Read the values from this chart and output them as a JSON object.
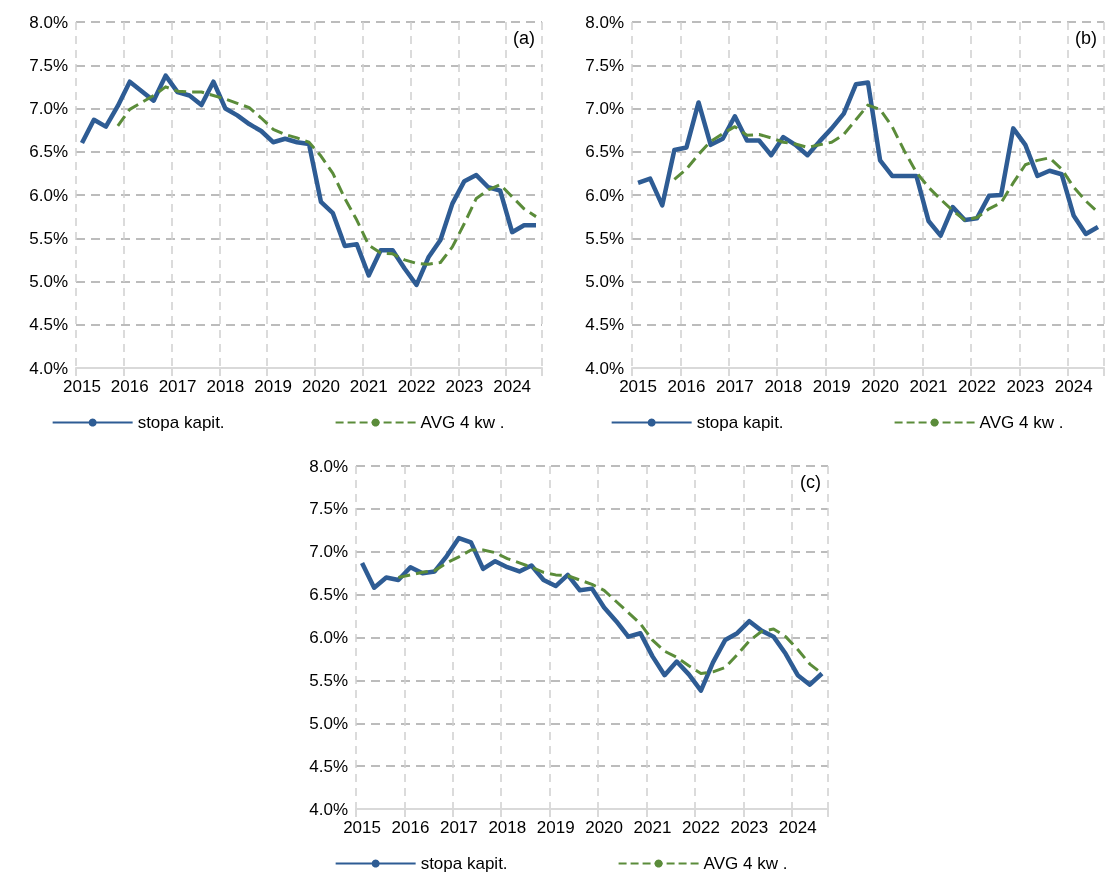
{
  "chart_data": [
    {
      "type": "line",
      "title": "(a)",
      "categories": [
        "2015",
        null,
        null,
        null,
        "2016",
        null,
        null,
        null,
        "2017",
        null,
        null,
        null,
        "2018",
        null,
        null,
        null,
        "2019",
        null,
        null,
        null,
        "2020",
        null,
        null,
        null,
        "2021",
        null,
        null,
        null,
        "2022",
        null,
        null,
        null,
        "2023",
        null,
        null,
        null,
        "2024",
        null,
        null
      ],
      "series": [
        {
          "name": "stopa kapit.",
          "color": "#2e5c94",
          "line_style": "solid",
          "values": [
            6.6,
            6.87,
            6.79,
            7.03,
            7.31,
            7.2,
            7.09,
            7.38,
            7.19,
            7.15,
            7.04,
            7.31,
            7.0,
            6.92,
            6.82,
            6.74,
            6.61,
            6.65,
            6.61,
            6.59,
            5.92,
            5.79,
            5.41,
            5.43,
            5.07,
            5.36,
            5.36,
            5.15,
            4.96,
            5.28,
            5.48,
            5.9,
            6.16,
            6.23,
            6.09,
            6.05,
            5.57,
            5.65,
            5.65
          ]
        },
        {
          "name": "AVG 4 kw .",
          "color": "#5b8c3a",
          "line_style": "dashed",
          "values": [
            null,
            null,
            null,
            6.8,
            6.99,
            7.07,
            7.15,
            7.25,
            7.2,
            7.19,
            7.19,
            7.15,
            7.11,
            7.06,
            7.01,
            6.89,
            6.76,
            6.7,
            6.66,
            6.61,
            6.45,
            6.25,
            5.96,
            5.71,
            5.42,
            5.33,
            5.32,
            5.25,
            5.21,
            5.2,
            5.22,
            5.4,
            5.67,
            5.96,
            6.06,
            6.12,
            5.98,
            5.84,
            5.75
          ]
        }
      ],
      "ylim": [
        4,
        8
      ],
      "yticks": [
        {
          "value": 4,
          "label": "4.0%"
        },
        {
          "value": 4.5,
          "label": "4.5%"
        },
        {
          "value": 5,
          "label": "5.0%"
        },
        {
          "value": 5.5,
          "label": "5.5%"
        },
        {
          "value": 6,
          "label": "6.0%"
        },
        {
          "value": 6.5,
          "label": "6.5%"
        },
        {
          "value": 7,
          "label": "7.0%"
        },
        {
          "value": 7.5,
          "label": "7.5%"
        },
        {
          "value": 8,
          "label": "8.0%"
        }
      ],
      "grid": true,
      "legend": "bottom",
      "marker": "none"
    },
    {
      "type": "line",
      "title": "(b)",
      "categories": [
        "2015",
        null,
        null,
        null,
        "2016",
        null,
        null,
        null,
        "2017",
        null,
        null,
        null,
        "2018",
        null,
        null,
        null,
        "2019",
        null,
        null,
        null,
        "2020",
        null,
        null,
        null,
        "2021",
        null,
        null,
        null,
        "2022",
        null,
        null,
        null,
        "2023",
        null,
        null,
        null,
        "2024",
        null,
        null
      ],
      "series": [
        {
          "name": "stopa kapit.",
          "color": "#2e5c94",
          "line_style": "solid",
          "values": [
            6.14,
            6.19,
            5.88,
            6.52,
            6.55,
            7.07,
            6.58,
            6.65,
            6.91,
            6.63,
            6.63,
            6.46,
            6.67,
            6.58,
            6.46,
            6.62,
            6.77,
            6.94,
            7.28,
            7.3,
            6.4,
            6.22,
            6.22,
            6.22,
            5.7,
            5.53,
            5.86,
            5.71,
            5.73,
            5.99,
            6.0,
            6.77,
            6.58,
            6.22,
            6.28,
            6.24,
            5.76,
            5.55,
            5.63
          ]
        },
        {
          "name": "AVG 4 kw .",
          "color": "#5b8c3a",
          "line_style": "dashed",
          "values": [
            null,
            null,
            null,
            6.18,
            6.3,
            6.47,
            6.62,
            6.71,
            6.79,
            6.69,
            6.7,
            6.66,
            6.61,
            6.59,
            6.55,
            6.58,
            6.61,
            6.7,
            6.87,
            7.04,
            6.99,
            6.79,
            6.51,
            6.26,
            6.09,
            5.95,
            5.82,
            5.71,
            5.74,
            5.84,
            5.91,
            6.14,
            6.35,
            6.4,
            6.43,
            6.3,
            6.09,
            5.93,
            5.8
          ]
        }
      ],
      "ylim": [
        4,
        8
      ],
      "yticks": [
        {
          "value": 4,
          "label": "4.0%"
        },
        {
          "value": 4.5,
          "label": "4.5%"
        },
        {
          "value": 5,
          "label": "5.0%"
        },
        {
          "value": 5.5,
          "label": "5.5%"
        },
        {
          "value": 6,
          "label": "6.0%"
        },
        {
          "value": 6.5,
          "label": "6.5%"
        },
        {
          "value": 7,
          "label": "7.0%"
        },
        {
          "value": 7.5,
          "label": "7.5%"
        },
        {
          "value": 8,
          "label": "8.0%"
        }
      ],
      "grid": true,
      "legend": "bottom",
      "marker": "none"
    },
    {
      "type": "line",
      "title": "(c)",
      "categories": [
        "2015",
        null,
        null,
        null,
        "2016",
        null,
        null,
        null,
        "2017",
        null,
        null,
        null,
        "2018",
        null,
        null,
        null,
        "2019",
        null,
        null,
        null,
        "2020",
        null,
        null,
        null,
        "2021",
        null,
        null,
        null,
        "2022",
        null,
        null,
        null,
        "2023",
        null,
        null,
        null,
        "2024",
        null,
        null
      ],
      "series": [
        {
          "name": "stopa kapit.",
          "color": "#2e5c94",
          "line_style": "solid",
          "values": [
            6.87,
            6.58,
            6.7,
            6.67,
            6.82,
            6.75,
            6.77,
            6.95,
            7.16,
            7.11,
            6.8,
            6.89,
            6.82,
            6.77,
            6.84,
            6.67,
            6.6,
            6.73,
            6.55,
            6.57,
            6.35,
            6.19,
            6.01,
            6.05,
            5.78,
            5.56,
            5.72,
            5.57,
            5.38,
            5.71,
            5.97,
            6.05,
            6.19,
            6.08,
            6.01,
            5.81,
            5.56,
            5.45,
            5.58
          ]
        },
        {
          "name": "AVG 4 kw .",
          "color": "#5b8c3a",
          "line_style": "dashed",
          "values": [
            null,
            null,
            null,
            6.7,
            6.73,
            6.76,
            6.78,
            6.87,
            6.94,
            7.02,
            7.02,
            6.99,
            6.92,
            6.87,
            6.82,
            6.76,
            6.73,
            6.72,
            6.67,
            6.62,
            6.55,
            6.42,
            6.29,
            6.16,
            5.97,
            5.84,
            5.77,
            5.67,
            5.58,
            5.6,
            5.65,
            5.8,
            5.96,
            6.07,
            6.1,
            6.01,
            5.86,
            5.69,
            5.58
          ]
        }
      ],
      "ylim": [
        4,
        8
      ],
      "yticks": [
        {
          "value": 4,
          "label": "4.0%"
        },
        {
          "value": 4.5,
          "label": "4.5%"
        },
        {
          "value": 5,
          "label": "5.0%"
        },
        {
          "value": 5.5,
          "label": "5.5%"
        },
        {
          "value": 6,
          "label": "6.0%"
        },
        {
          "value": 6.5,
          "label": "6.5%"
        },
        {
          "value": 7,
          "label": "7.0%"
        },
        {
          "value": 7.5,
          "label": "7.5%"
        },
        {
          "value": 8,
          "label": "8.0%"
        }
      ],
      "grid": true,
      "legend": "bottom",
      "marker": "none"
    }
  ]
}
